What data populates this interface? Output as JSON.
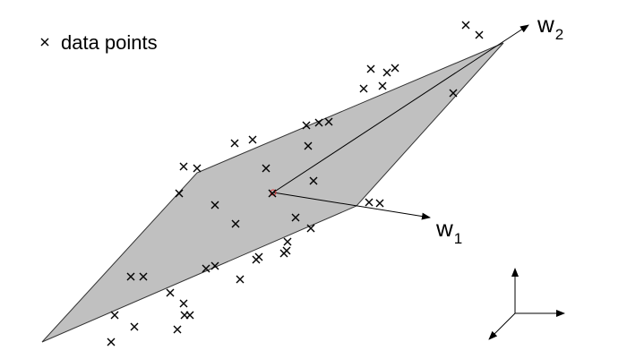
{
  "legend": {
    "marker_icon": "x-marker-icon",
    "label": "data points"
  },
  "vectors": {
    "w1": {
      "letter": "w",
      "subscript": "1"
    },
    "w2": {
      "letter": "w",
      "subscript": "2"
    }
  },
  "colors": {
    "plane_fill": "#c0c0c0",
    "plane_stroke": "#333333",
    "origin_marker": "#e03030",
    "ink": "#000000"
  },
  "icons": {
    "origin": "origin-circle-icon",
    "coordinate_frame": "xyz-axes-icon"
  },
  "data_points_count": 44
}
